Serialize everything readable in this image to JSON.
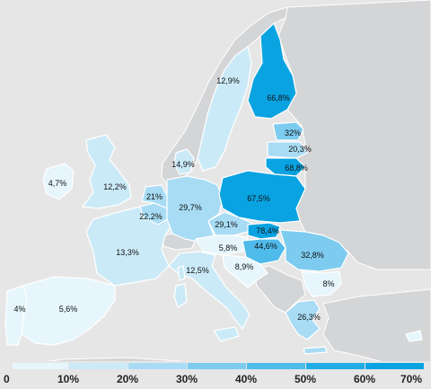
{
  "colors": {
    "sea": "#e6e6e6",
    "non_eu_land": "#d4d5d7",
    "band_0_10": "#e6f6fc",
    "band_10_20": "#cbeaf8",
    "band_20_30": "#a8dcf4",
    "band_30_40": "#7dcbef",
    "band_40_50": "#4fbbeb",
    "band_50_60": "#22ace6",
    "band_60_70": "#0aa3e2"
  },
  "map": {
    "regions": [
      {
        "id": "portugal",
        "value_text": "4%",
        "value": 4
      },
      {
        "id": "spain",
        "value_text": "5,6%",
        "value": 5.6
      },
      {
        "id": "ireland",
        "value_text": "4,7%",
        "value": 4.7
      },
      {
        "id": "united-kingdom",
        "value_text": "12,2%",
        "value": 12.2
      },
      {
        "id": "france",
        "value_text": "13,3%",
        "value": 13.3
      },
      {
        "id": "belgium",
        "value_text": "22,2%",
        "value": 22.2
      },
      {
        "id": "netherlands",
        "value_text": "21%",
        "value": 21
      },
      {
        "id": "germany",
        "value_text": "29,7%",
        "value": 29.7
      },
      {
        "id": "denmark",
        "value_text": "14,9%",
        "value": 14.9
      },
      {
        "id": "sweden",
        "value_text": "12,9%",
        "value": 12.9
      },
      {
        "id": "finland",
        "value_text": "66,8%",
        "value": 66.8
      },
      {
        "id": "estonia",
        "value_text": "32%",
        "value": 32
      },
      {
        "id": "latvia",
        "value_text": "20,3%",
        "value": 20.3
      },
      {
        "id": "lithuania",
        "value_text": "68,8%",
        "value": 68.8
      },
      {
        "id": "poland",
        "value_text": "67,5%",
        "value": 67.5
      },
      {
        "id": "czechia",
        "value_text": "29,1%",
        "value": 29.1
      },
      {
        "id": "slovakia",
        "value_text": "78,4%",
        "value": 78.4
      },
      {
        "id": "austria",
        "value_text": "5,8%",
        "value": 5.8
      },
      {
        "id": "hungary",
        "value_text": "44,6%",
        "value": 44.6
      },
      {
        "id": "romania",
        "value_text": "32,8%",
        "value": 32.8
      },
      {
        "id": "bulgaria",
        "value_text": "8%",
        "value": 8
      },
      {
        "id": "greece",
        "value_text": "26,3%",
        "value": 26.3
      },
      {
        "id": "italy",
        "value_text": "12,5%",
        "value": 12.5
      },
      {
        "id": "slovenia-croatia",
        "value_text": "8,9%",
        "value": 8.9
      }
    ]
  },
  "legend": {
    "ticks": [
      "0",
      "10%",
      "20%",
      "30%",
      "40%",
      "50%",
      "60%",
      "70%"
    ]
  }
}
